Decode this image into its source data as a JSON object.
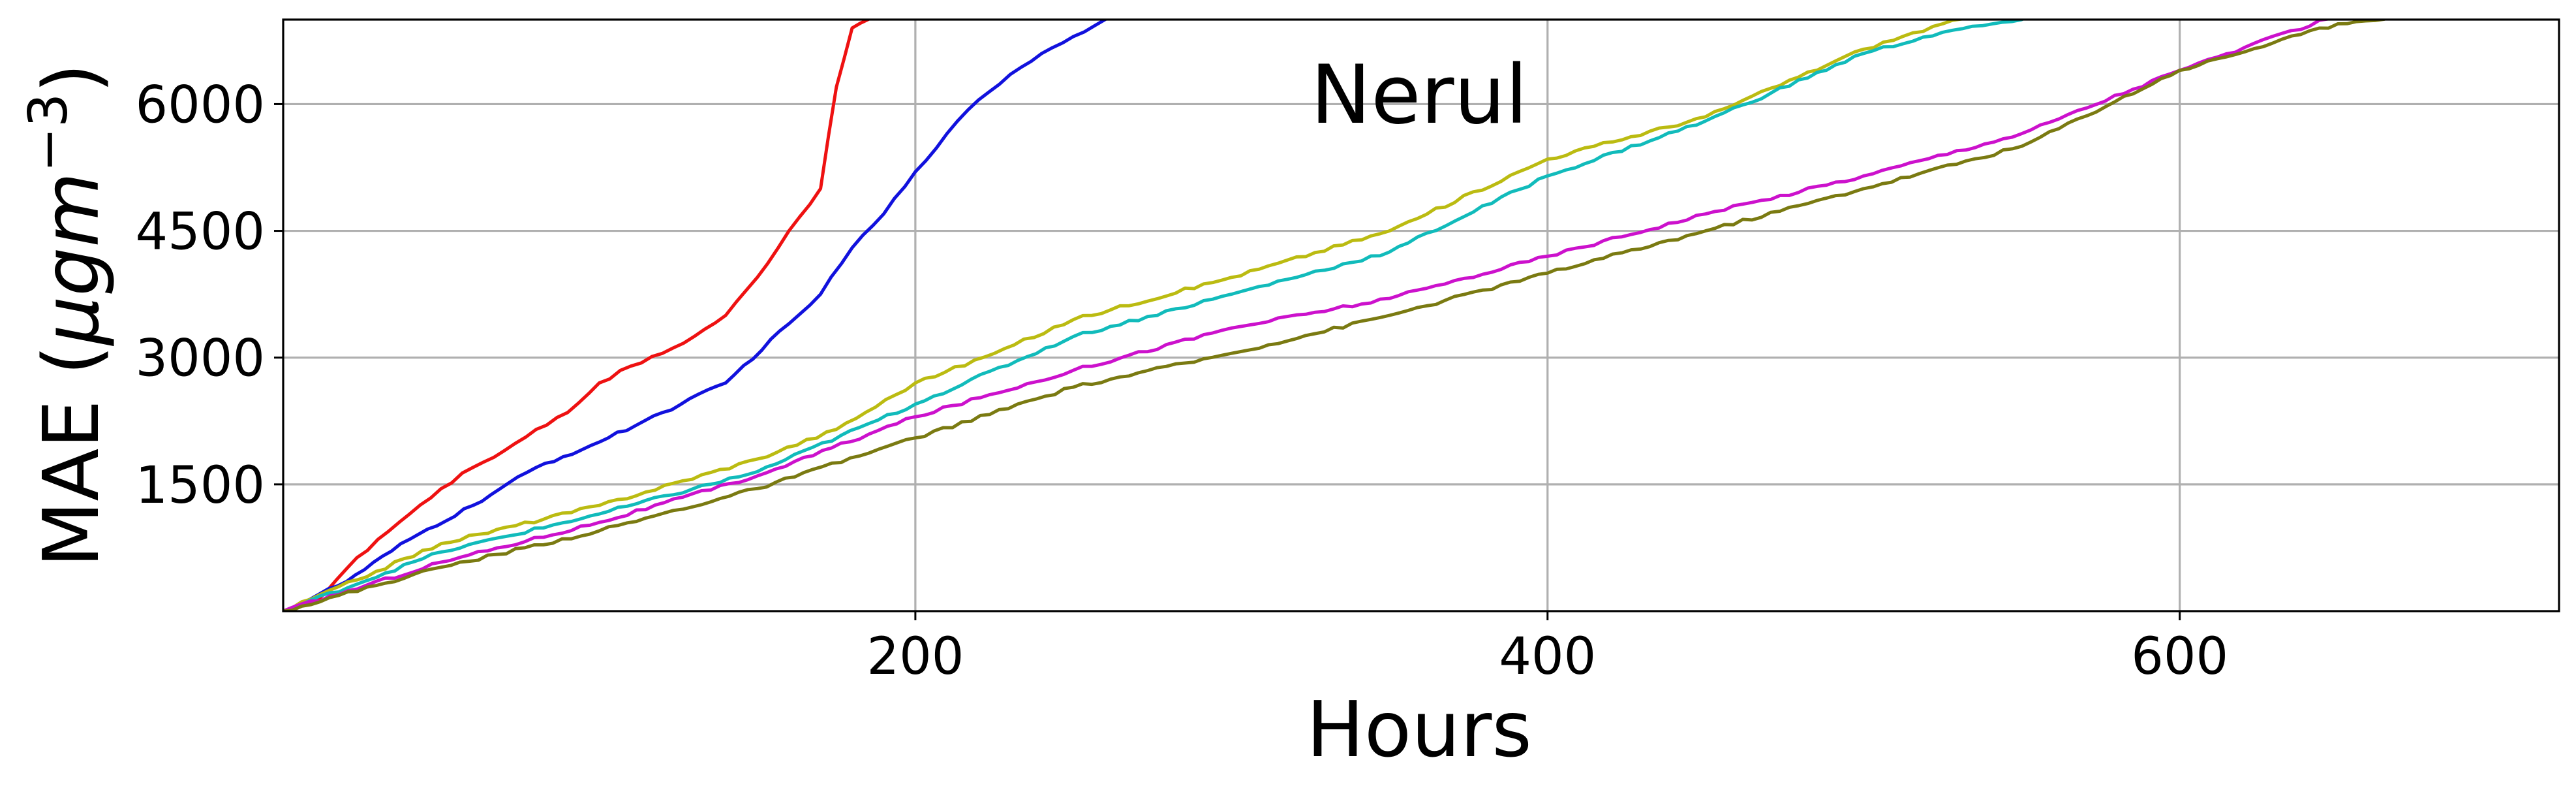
{
  "chart_data": {
    "type": "line",
    "title": "Nerul",
    "xlabel": "Hours",
    "ylabel_main": "MAE (",
    "ylabel_mu": "μgm",
    "ylabel_sup": "−3",
    "ylabel_close": ")",
    "xlim": [
      0,
      720
    ],
    "ylim": [
      0,
      7000
    ],
    "xticks": [
      200,
      400,
      600
    ],
    "xtick_labels": [
      "200",
      "400",
      "600"
    ],
    "yticks": [
      1500,
      3000,
      4500,
      6000
    ],
    "ytick_labels": [
      "1500",
      "3000",
      "4500",
      "6000"
    ],
    "grid": true,
    "series": [
      {
        "color": "#ee1111",
        "x": [
          0,
          10,
          20,
          30,
          40,
          50,
          60,
          70,
          80,
          90,
          100,
          110,
          120,
          130,
          140,
          150,
          160,
          170,
          175,
          180,
          185,
          190,
          195,
          200
        ],
        "y": [
          0,
          100,
          500,
          850,
          1150,
          1450,
          1700,
          1900,
          2150,
          2350,
          2700,
          2900,
          3050,
          3250,
          3500,
          3950,
          4500,
          5000,
          6200,
          6900,
          7000,
          7100,
          7200,
          7300
        ]
      },
      {
        "color": "#1111dd",
        "x": [
          0,
          20,
          40,
          60,
          80,
          100,
          120,
          140,
          160,
          170,
          180,
          190,
          200,
          210,
          220,
          230,
          240,
          250,
          260,
          270,
          280
        ],
        "y": [
          0,
          350,
          850,
          1250,
          1700,
          2000,
          2350,
          2700,
          3400,
          3750,
          4300,
          4700,
          5200,
          5650,
          6050,
          6350,
          6600,
          6800,
          7000,
          7200,
          7400
        ]
      },
      {
        "color": "#bbbb11",
        "x": [
          0,
          50,
          100,
          150,
          175,
          200,
          225,
          250,
          300,
          350,
          400,
          450,
          500,
          525,
          550,
          575
        ],
        "y": [
          0,
          800,
          1250,
          1800,
          2150,
          2700,
          3050,
          3450,
          3950,
          4500,
          5350,
          5850,
          6650,
          6950,
          7150,
          7400
        ]
      },
      {
        "color": "#11bbbb",
        "x": [
          0,
          50,
          100,
          150,
          200,
          250,
          300,
          350,
          400,
          450,
          500,
          525,
          550,
          575
        ],
        "y": [
          0,
          700,
          1150,
          1650,
          2450,
          3250,
          3750,
          4250,
          5150,
          5800,
          6600,
          6850,
          7000,
          7300
        ]
      },
      {
        "color": "#cc11cc",
        "x": [
          0,
          50,
          100,
          150,
          200,
          250,
          300,
          350,
          400,
          450,
          500,
          550,
          600,
          650,
          700
        ],
        "y": [
          0,
          580,
          1050,
          1600,
          2300,
          2850,
          3350,
          3700,
          4200,
          4700,
          5150,
          5650,
          6400,
          7050,
          7300
        ]
      },
      {
        "color": "#7a7a11",
        "x": [
          0,
          50,
          100,
          150,
          200,
          250,
          300,
          350,
          400,
          450,
          500,
          550,
          600,
          650,
          700
        ],
        "y": [
          0,
          520,
          950,
          1450,
          2050,
          2650,
          3050,
          3500,
          4000,
          4500,
          5000,
          5500,
          6400,
          6950,
          7200
        ]
      }
    ]
  }
}
